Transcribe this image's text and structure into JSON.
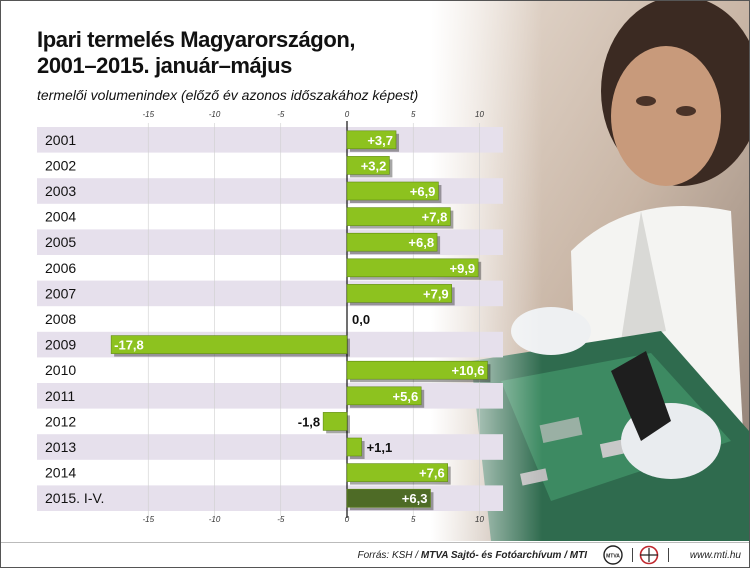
{
  "title_line1": "Ipari termelés Magyarországon,",
  "title_line2": "2001–2015. január–május",
  "subtitle": "termelői volumenindex (előző év azonos időszakához képest)",
  "chart_data": {
    "type": "bar",
    "orientation": "horizontal",
    "categories": [
      "2001",
      "2002",
      "2003",
      "2004",
      "2005",
      "2006",
      "2007",
      "2008",
      "2009",
      "2010",
      "2011",
      "2012",
      "2013",
      "2014",
      "2015. I-V."
    ],
    "values": [
      3.7,
      3.2,
      6.9,
      7.8,
      6.8,
      9.9,
      7.9,
      0.0,
      -17.8,
      10.6,
      5.6,
      -1.8,
      1.1,
      7.6,
      6.3
    ],
    "labels": [
      "+3,7",
      "+3,2",
      "+6,9",
      "+7,8",
      "+6,8",
      "+9,9",
      "+7,9",
      "0,0",
      "-17,8",
      "+10,6",
      "+5,6",
      "-1,8",
      "+1,1",
      "+7,6",
      "+6,3"
    ],
    "xlim": [
      -17.8,
      11.5
    ],
    "ticks": [
      -15,
      -10,
      -5,
      0,
      5,
      10
    ],
    "tick_labels": [
      "-15",
      "-10",
      "-5",
      "0",
      "5",
      "10"
    ],
    "grid": true,
    "colors": {
      "bar": "#8dc21f",
      "bar_highlight": "#4e6b26",
      "band": "#e6e0ec"
    }
  },
  "footer": {
    "source_prefix": "Forrás: KSH / ",
    "source_agency": "MTVA Sajtó- és Fotóarchívum / MTI",
    "logo1_icon": "mtva-logo-icon",
    "logo2_icon": "mti-logo-icon",
    "url": "www.mti.hu"
  }
}
